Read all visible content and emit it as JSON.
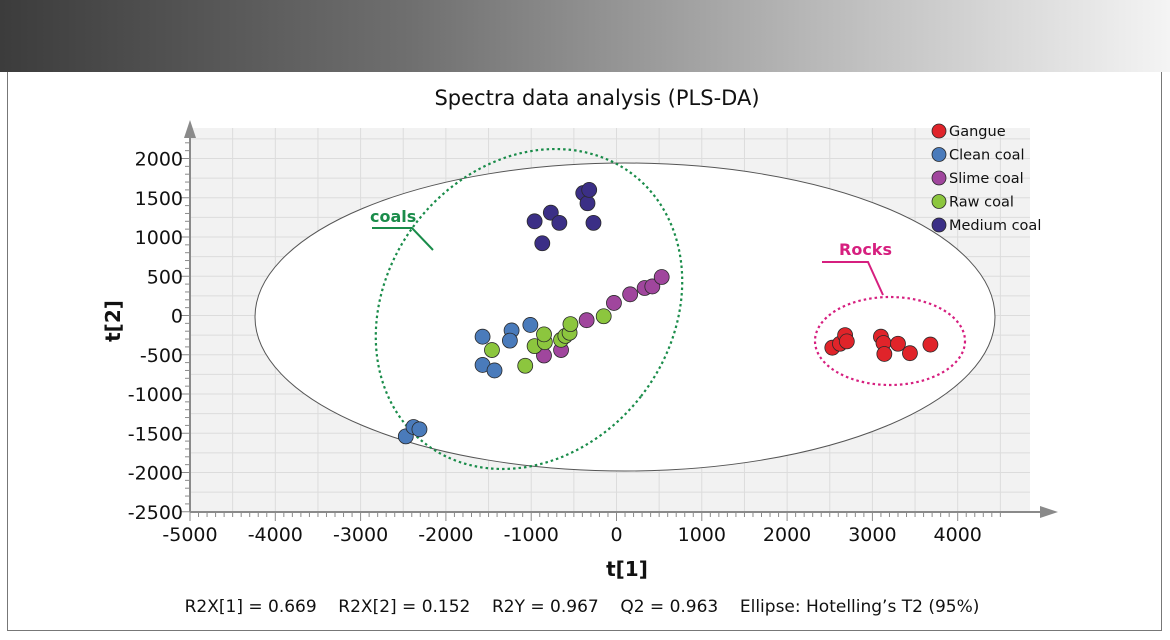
{
  "chart_data": {
    "type": "scatter",
    "title": "Spectra data analysis (PLS-DA)",
    "xlabel": "t[1]",
    "ylabel": "t[2]",
    "xlim": [
      -5000,
      5000
    ],
    "ylim": [
      -2500,
      2100
    ],
    "xticks": [
      -5000,
      -4000,
      -3000,
      -2000,
      -1000,
      0,
      1000,
      2000,
      3000,
      4000
    ],
    "yticks": [
      -2500,
      -2000,
      -1500,
      -1000,
      -500,
      0,
      500,
      1000,
      1500,
      2000
    ],
    "grid": true,
    "legend_position": "top-right",
    "series": [
      {
        "name": "Gangue",
        "color": "#e0242a",
        "points": [
          [
            2530,
            -410
          ],
          [
            2620,
            -360
          ],
          [
            2680,
            -250
          ],
          [
            2700,
            -330
          ],
          [
            3100,
            -270
          ],
          [
            3130,
            -350
          ],
          [
            3140,
            -490
          ],
          [
            3300,
            -360
          ],
          [
            3440,
            -480
          ],
          [
            3680,
            -370
          ]
        ]
      },
      {
        "name": "Clean coal",
        "color": "#4a7bbb",
        "points": [
          [
            -2470,
            -1540
          ],
          [
            -2380,
            -1420
          ],
          [
            -2310,
            -1450
          ],
          [
            -1570,
            -270
          ],
          [
            -1570,
            -630
          ],
          [
            -1430,
            -700
          ],
          [
            -1230,
            -190
          ],
          [
            -1250,
            -320
          ],
          [
            -1010,
            -120
          ]
        ]
      },
      {
        "name": "Slime coal",
        "color": "#a0469d",
        "points": [
          [
            -850,
            -510
          ],
          [
            -650,
            -440
          ],
          [
            -350,
            -60
          ],
          [
            -30,
            160
          ],
          [
            160,
            270
          ],
          [
            330,
            350
          ],
          [
            420,
            370
          ],
          [
            530,
            490
          ]
        ]
      },
      {
        "name": "Raw coal",
        "color": "#8cc63e",
        "points": [
          [
            -1460,
            -440
          ],
          [
            -1070,
            -640
          ],
          [
            -960,
            -390
          ],
          [
            -840,
            -340
          ],
          [
            -850,
            -240
          ],
          [
            -650,
            -310
          ],
          [
            -600,
            -260
          ],
          [
            -550,
            -220
          ],
          [
            -540,
            -110
          ],
          [
            -150,
            -10
          ]
        ]
      },
      {
        "name": "Medium coal",
        "color": "#3b2f86",
        "points": [
          [
            -960,
            1200
          ],
          [
            -870,
            920
          ],
          [
            -770,
            1310
          ],
          [
            -670,
            1180
          ],
          [
            -390,
            1560
          ],
          [
            -340,
            1430
          ],
          [
            -320,
            1600
          ],
          [
            -270,
            1180
          ]
        ]
      }
    ],
    "annotations": [
      {
        "text": "coals",
        "color": "#1a8c4a"
      },
      {
        "text": "Rocks",
        "color": "#d61f7f"
      }
    ],
    "ellipses": [
      {
        "label": "Hotelling's T2 (95%)",
        "style": "solid",
        "color": "#444444"
      },
      {
        "label": "coals",
        "style": "dotted",
        "color": "#1a8c4a"
      },
      {
        "label": "Rocks",
        "style": "dotted",
        "color": "#d61f7f"
      }
    ],
    "stats_line": "R2X[1] = 0.669    R2X[2] = 0.152    R2Y = 0.967    Q2 = 0.963    Ellipse: Hotelling’s T2 (95%)"
  }
}
